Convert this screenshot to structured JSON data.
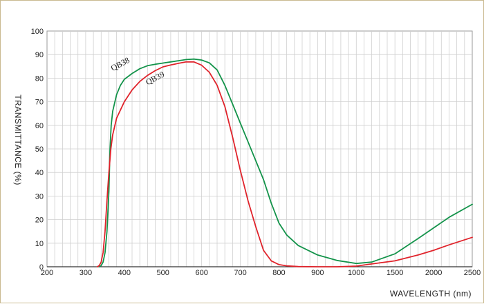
{
  "chart_data": {
    "type": "line",
    "xlabel": "WAVELENGTH (nm)",
    "ylabel": "TRANSMITTANCE  (%)",
    "x_tick_labels": [
      "200",
      "300",
      "400",
      "500",
      "600",
      "700",
      "800",
      "900",
      "1000",
      "1500",
      "2000",
      "2500"
    ],
    "y_tick_labels": [
      "0",
      "10",
      "20",
      "30",
      "40",
      "50",
      "60",
      "70",
      "80",
      "90",
      "100"
    ],
    "ylim": [
      0,
      100
    ],
    "grid": true,
    "x_axis_note": "tick labels are evenly spaced; the axis scale changes between 1000 and 2500",
    "series": [
      {
        "name": "QB38",
        "color": "#13934a",
        "points": [
          [
            335,
            0
          ],
          [
            340,
            0.5
          ],
          [
            345,
            2
          ],
          [
            350,
            6
          ],
          [
            355,
            15
          ],
          [
            360,
            32
          ],
          [
            363,
            50
          ],
          [
            366,
            60
          ],
          [
            370,
            66
          ],
          [
            380,
            73
          ],
          [
            390,
            77
          ],
          [
            400,
            79.5
          ],
          [
            420,
            82
          ],
          [
            440,
            84
          ],
          [
            460,
            85.3
          ],
          [
            480,
            85.9
          ],
          [
            500,
            86.4
          ],
          [
            520,
            86.9
          ],
          [
            540,
            87.4
          ],
          [
            560,
            87.9
          ],
          [
            580,
            88.1
          ],
          [
            600,
            87.7
          ],
          [
            620,
            86.5
          ],
          [
            640,
            83.5
          ],
          [
            660,
            77
          ],
          [
            680,
            69
          ],
          [
            700,
            61
          ],
          [
            720,
            53
          ],
          [
            740,
            45
          ],
          [
            760,
            37
          ],
          [
            780,
            27
          ],
          [
            800,
            18.5
          ],
          [
            820,
            13.5
          ],
          [
            850,
            9
          ],
          [
            900,
            5
          ],
          [
            950,
            2.7
          ],
          [
            1000,
            1.4
          ],
          [
            1200,
            2
          ],
          [
            1500,
            5.5
          ],
          [
            1800,
            12
          ],
          [
            2000,
            16.5
          ],
          [
            2200,
            21
          ],
          [
            2500,
            26.5
          ]
        ]
      },
      {
        "name": "QB39",
        "color": "#e0232b",
        "points": [
          [
            330,
            0
          ],
          [
            335,
            0.5
          ],
          [
            340,
            2
          ],
          [
            345,
            6
          ],
          [
            350,
            15
          ],
          [
            355,
            28
          ],
          [
            360,
            40
          ],
          [
            365,
            50
          ],
          [
            370,
            56
          ],
          [
            380,
            63
          ],
          [
            400,
            70
          ],
          [
            420,
            75
          ],
          [
            440,
            78.6
          ],
          [
            460,
            81.2
          ],
          [
            480,
            83.2
          ],
          [
            500,
            84.8
          ],
          [
            520,
            85.6
          ],
          [
            540,
            86.3
          ],
          [
            560,
            86.9
          ],
          [
            580,
            86.9
          ],
          [
            600,
            85.5
          ],
          [
            620,
            82.5
          ],
          [
            640,
            77
          ],
          [
            660,
            68
          ],
          [
            680,
            55
          ],
          [
            700,
            41
          ],
          [
            720,
            28
          ],
          [
            740,
            17
          ],
          [
            760,
            7
          ],
          [
            780,
            2.5
          ],
          [
            800,
            0.9
          ],
          [
            820,
            0.4
          ],
          [
            850,
            0.1
          ],
          [
            900,
            0
          ],
          [
            950,
            0
          ],
          [
            1000,
            0.3
          ],
          [
            1200,
            1.2
          ],
          [
            1500,
            2.5
          ],
          [
            1800,
            5
          ],
          [
            2000,
            7
          ],
          [
            2200,
            9.3
          ],
          [
            2500,
            12.5
          ]
        ]
      }
    ]
  }
}
